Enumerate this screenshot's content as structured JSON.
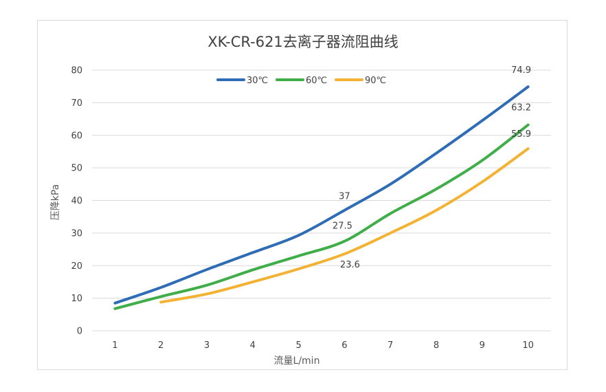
{
  "chart_data": {
    "type": "line",
    "title": "XK-CR-621去离子器流阻曲线",
    "xlabel": "流量L/min",
    "ylabel": "压降kPa",
    "categories": [
      1,
      2,
      3,
      4,
      5,
      6,
      7,
      8,
      9,
      10
    ],
    "ylim": [
      0,
      80
    ],
    "yticks": [
      0,
      10,
      20,
      30,
      40,
      50,
      60,
      70,
      80
    ],
    "grid": "horizontal",
    "legend_position": "top-center",
    "series": [
      {
        "name": "30℃",
        "color": "#2e6cb5",
        "values": [
          8.5,
          13.3,
          18.8,
          24,
          29.3,
          37,
          45,
          54.5,
          64.5,
          74.9
        ]
      },
      {
        "name": "60℃",
        "color": "#3fae49",
        "values": [
          6.8,
          10.5,
          14,
          18.7,
          23,
          27.5,
          36,
          43.5,
          52.3,
          63.2
        ]
      },
      {
        "name": "90℃",
        "color": "#f3b234",
        "values": [
          null,
          8.8,
          11.3,
          15,
          19,
          23.6,
          30,
          37,
          45.7,
          55.9
        ]
      }
    ],
    "annotations": [
      {
        "text": "74.9",
        "x": 10,
        "y": 74.9
      },
      {
        "text": "63.2",
        "x": 10,
        "y": 63.2
      },
      {
        "text": "55.9",
        "x": 10,
        "y": 55.9
      },
      {
        "text": "37",
        "x": 6,
        "y": 37
      },
      {
        "text": "27.5",
        "x": 6,
        "y": 27.5
      },
      {
        "text": "23.6",
        "x": 6,
        "y": 23.6
      }
    ]
  }
}
